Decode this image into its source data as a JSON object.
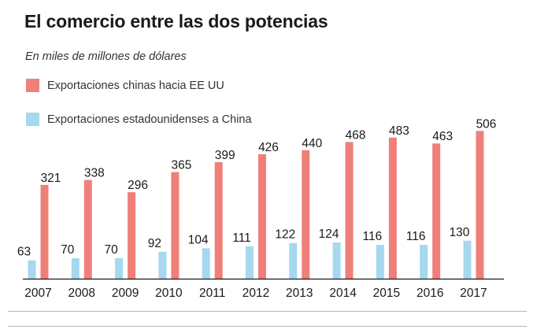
{
  "header": {
    "title": "El comercio entre las dos potencias",
    "subtitle": "En miles de millones de dólares"
  },
  "chart_data": {
    "type": "bar",
    "title": "El comercio entre las dos potencias",
    "subtitle": "En miles de millones de dólares",
    "xlabel": "",
    "ylabel": "",
    "ylim": [
      0,
      520
    ],
    "grid": false,
    "legend_position": "top-left",
    "categories": [
      "2007",
      "2008",
      "2009",
      "2010",
      "2011",
      "2012",
      "2013",
      "2014",
      "2015",
      "2016",
      "2017"
    ],
    "series": [
      {
        "name": "Exportaciones estadounidenses a China",
        "color": "#a6d8ef",
        "values": [
          63,
          70,
          70,
          92,
          104,
          111,
          122,
          124,
          116,
          116,
          130
        ]
      },
      {
        "name": "Exportaciones chinas hacia EE UU",
        "color": "#ef8079",
        "values": [
          321,
          338,
          296,
          365,
          399,
          426,
          440,
          468,
          483,
          463,
          506
        ]
      }
    ]
  }
}
